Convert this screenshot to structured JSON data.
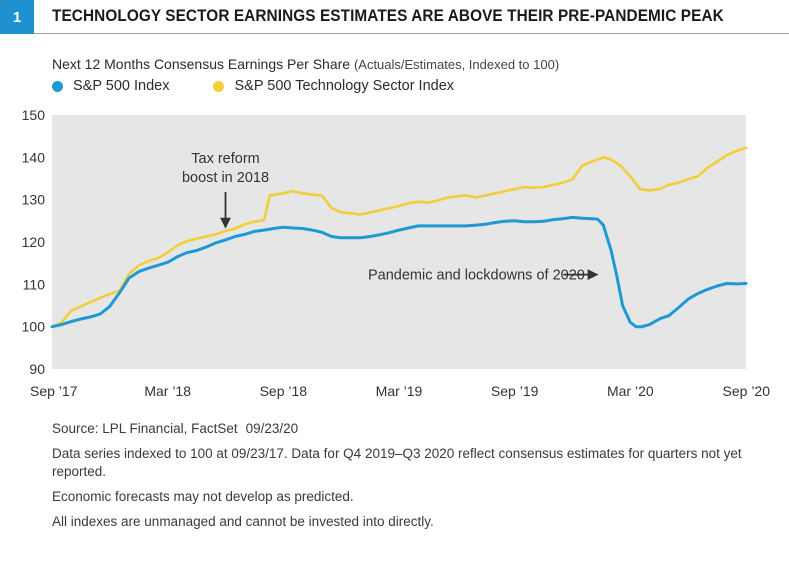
{
  "figure": {
    "number": "1",
    "title": "TECHNOLOGY SECTOR EARNINGS ESTIMATES ARE ABOVE THEIR PRE-PANDEMIC PEAK"
  },
  "colors": {
    "accent": "#1f90d0",
    "sp500": "#1f98d6",
    "tech": "#f2cf3a",
    "plot_bg": "#e6e6e6",
    "axis_text": "#333333",
    "annotation": "#333333"
  },
  "chart_data": {
    "type": "line",
    "title": "Next 12 Months Consensus Earnings Per Share",
    "title_note": "(Actuals/Estimates, Indexed to 100)",
    "xlabel": "",
    "ylabel": "",
    "xlim": [
      0,
      36
    ],
    "ylim": [
      90,
      150
    ],
    "yticks": [
      90,
      100,
      110,
      120,
      130,
      140,
      150
    ],
    "xticks": [
      {
        "at": 0,
        "label": "Sep ’17"
      },
      {
        "at": 6,
        "label": "Mar ’18"
      },
      {
        "at": 12,
        "label": "Sep ’18"
      },
      {
        "at": 18,
        "label": "Mar ’19"
      },
      {
        "at": 24,
        "label": "Sep ’19"
      },
      {
        "at": 30,
        "label": "Mar ’20"
      },
      {
        "at": 36,
        "label": "Sep ’20"
      }
    ],
    "grid": false,
    "legend_position": "top-left",
    "series": [
      {
        "name": "S&P 500 Index",
        "color": "#1f98d6",
        "x": [
          0,
          0.5,
          1,
          1.5,
          2,
          2.5,
          3,
          3.5,
          4,
          4.5,
          5,
          5.5,
          6,
          6.5,
          7,
          7.5,
          8,
          8.5,
          9,
          9.5,
          10,
          10.5,
          11,
          11.5,
          12,
          12.5,
          13,
          13.5,
          14,
          14.5,
          15,
          15.5,
          16,
          16.5,
          17,
          17.5,
          18,
          18.5,
          19,
          19.5,
          20,
          20.5,
          21,
          21.5,
          22,
          22.5,
          23,
          23.5,
          24,
          24.5,
          25,
          25.5,
          26,
          26.5,
          27,
          27.5,
          28,
          28.3,
          28.6,
          29,
          29.3,
          29.6,
          30,
          30.3,
          30.6,
          31,
          31.3,
          31.6,
          32,
          32.5,
          33,
          33.5,
          34,
          34.5,
          35,
          35.5,
          36
        ],
        "values": [
          100,
          100.5,
          101.2,
          101.8,
          102.3,
          103,
          104.8,
          108,
          111.5,
          113,
          113.8,
          114.5,
          115.2,
          116.5,
          117.5,
          118,
          118.8,
          119.8,
          120.5,
          121.3,
          121.8,
          122.5,
          122.8,
          123.2,
          123.5,
          123.3,
          123.2,
          122.8,
          122.3,
          121.3,
          121.0,
          121.0,
          121.0,
          121.3,
          121.7,
          122.2,
          122.8,
          123.3,
          123.8,
          123.8,
          123.8,
          123.8,
          123.8,
          123.8,
          124.0,
          124.2,
          124.6,
          124.9,
          125.0,
          124.8,
          124.8,
          124.9,
          125.3,
          125.5,
          125.8,
          125.6,
          125.5,
          125.4,
          124.0,
          118.0,
          112.0,
          105.0,
          101.0,
          100.0,
          100.0,
          100.5,
          101.3,
          102.0,
          102.6,
          104.5,
          106.5,
          107.8,
          108.8,
          109.6,
          110.2,
          110.1,
          110.2
        ]
      },
      {
        "name": "S&P 500 Technology Sector Index",
        "color": "#f2cf3a",
        "x": [
          0,
          0.5,
          1,
          1.5,
          2,
          2.5,
          3,
          3.5,
          4,
          4.5,
          5,
          5.5,
          6,
          6.5,
          7,
          7.5,
          8,
          8.5,
          9,
          9.5,
          10,
          10.5,
          11,
          11.3,
          11.6,
          12,
          12.5,
          13,
          13.5,
          14,
          14.5,
          15,
          15.5,
          16,
          16.5,
          17,
          17.5,
          18,
          18.5,
          19,
          19.5,
          20,
          20.5,
          21,
          21.5,
          22,
          22.5,
          23,
          23.5,
          24,
          24.5,
          25,
          25.5,
          26,
          26.5,
          27,
          27.5,
          28,
          28.3,
          28.6,
          29,
          29.5,
          30,
          30.5,
          31,
          31.5,
          32,
          32.5,
          33,
          33.5,
          34,
          34.5,
          35,
          35.5,
          36
        ],
        "values": [
          100,
          101,
          103.8,
          104.8,
          105.8,
          106.8,
          107.7,
          108.5,
          112.5,
          114.5,
          115.5,
          116.2,
          117.5,
          119.2,
          120.2,
          120.8,
          121.3,
          121.8,
          122.6,
          123.2,
          124.2,
          124.8,
          125.2,
          131.0,
          131.2,
          131.5,
          132.0,
          131.5,
          131.2,
          131.0,
          128.0,
          127.0,
          126.8,
          126.5,
          127.0,
          127.5,
          128.0,
          128.5,
          129.2,
          129.5,
          129.3,
          129.8,
          130.5,
          130.8,
          131.0,
          130.5,
          131.0,
          131.5,
          132.0,
          132.5,
          133.0,
          132.8,
          133.0,
          133.5,
          134.0,
          134.8,
          138.0,
          139.0,
          139.5,
          140.0,
          139.5,
          138.0,
          135.5,
          132.5,
          132.2,
          132.5,
          133.5,
          134.0,
          134.8,
          135.5,
          137.5,
          139.0,
          140.5,
          141.5,
          142.3
        ]
      }
    ],
    "annotations": [
      {
        "text_lines": [
          "Tax reform",
          "boost in 2018"
        ],
        "arrow_to": {
          "x": 9,
          "y": 122.5
        },
        "arrow_dir": "down"
      },
      {
        "text_lines": [
          "Pandemic and lockdowns of 2020"
        ],
        "arrow_to": {
          "x": 28.6,
          "y": 112.3
        },
        "arrow_dir": "right"
      }
    ]
  },
  "footnotes": {
    "source": "Source: LPL Financial, FactSet",
    "source_date": "09/23/20",
    "indexing_note": "Data series indexed to 100 at 09/23/17. Data for Q4 2019–Q3 2020 reflect consensus estimates for quarters not yet reported.",
    "forecast_disclaimer": "Economic forecasts may not develop as predicted.",
    "index_disclaimer": "All indexes are unmanaged and cannot be invested into directly."
  }
}
